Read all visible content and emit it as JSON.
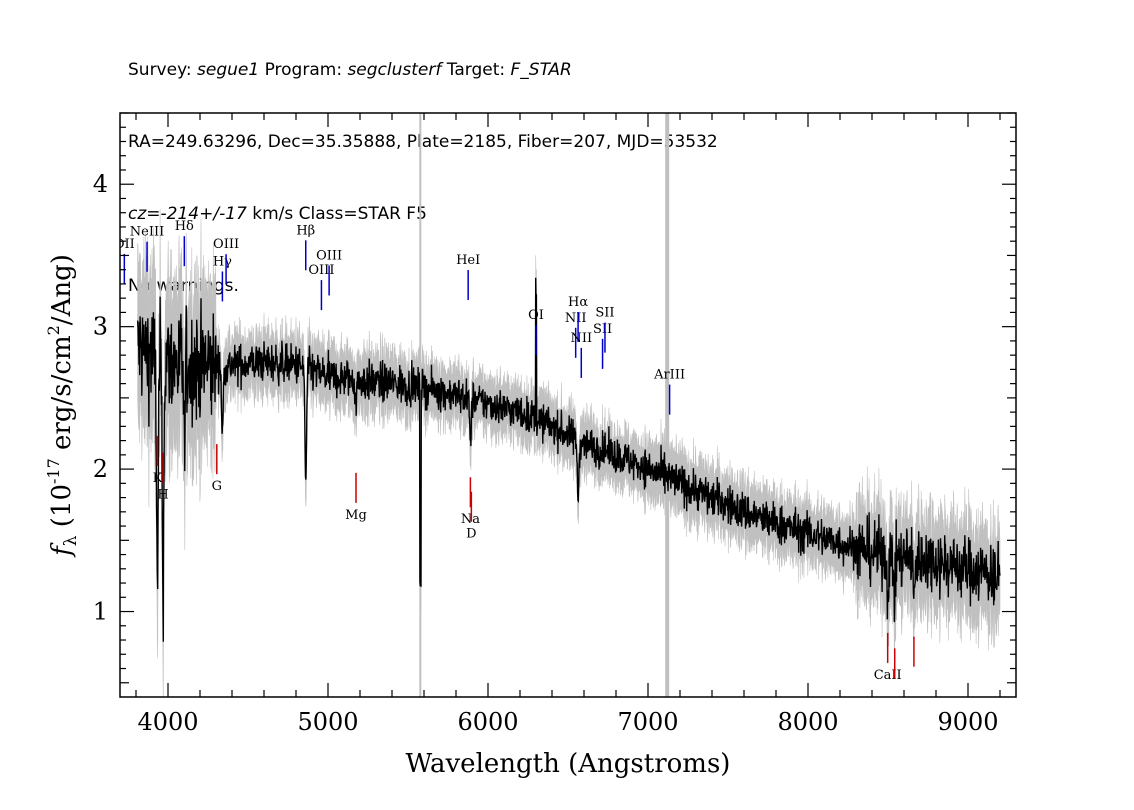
{
  "header": {
    "line1": {
      "a": "Survey: ",
      "survey": "segue1",
      "b": " Program: ",
      "program": "segclusterf",
      "c": " Target: ",
      "target": "F_STAR"
    },
    "line2": "RA=249.63296, Dec=35.35888, Plate=2185, Fiber=207, MJD=53532",
    "line3": {
      "cz": "cz=-214+/-17",
      "rest": " km/s Class=STAR F5"
    },
    "line4": "No warnings."
  },
  "chart_data": {
    "type": "line",
    "xlabel": "Wavelength (Angstroms)",
    "ylabel": {
      "f": "f",
      "sub": "λ",
      "pre": " (10",
      "exp": "-17",
      "mid": " erg/s/cm",
      "exp2": "2",
      "post": "/Ang)"
    },
    "xlim": [
      3700,
      9300
    ],
    "ylim": [
      0.4,
      4.5
    ],
    "x_ticks": [
      4000,
      5000,
      6000,
      7000,
      8000,
      9000
    ],
    "y_ticks": [
      1,
      2,
      3,
      4
    ],
    "sky_lines": [
      5577,
      7120
    ],
    "colors": {
      "spectrum": "#000000",
      "error": "#c0c0c0",
      "emission": "#0000cc",
      "absorption": "#cc0000",
      "sky": "#c0c0c0"
    },
    "continuum": [
      [
        3800,
        2.85
      ],
      [
        4000,
        2.75
      ],
      [
        4200,
        2.72
      ],
      [
        4400,
        2.73
      ],
      [
        4600,
        2.75
      ],
      [
        4800,
        2.73
      ],
      [
        5000,
        2.65
      ],
      [
        5200,
        2.62
      ],
      [
        5400,
        2.6
      ],
      [
        5600,
        2.57
      ],
      [
        5800,
        2.52
      ],
      [
        6000,
        2.46
      ],
      [
        6200,
        2.4
      ],
      [
        6400,
        2.3
      ],
      [
        6600,
        2.18
      ],
      [
        6800,
        2.1
      ],
      [
        7000,
        2.0
      ],
      [
        7200,
        1.9
      ],
      [
        7400,
        1.8
      ],
      [
        7600,
        1.7
      ],
      [
        7800,
        1.62
      ],
      [
        8000,
        1.55
      ],
      [
        8200,
        1.48
      ],
      [
        8400,
        1.42
      ],
      [
        8600,
        1.38
      ],
      [
        8800,
        1.36
      ],
      [
        9000,
        1.3
      ],
      [
        9200,
        1.25
      ]
    ],
    "absorption_features": [
      [
        3934,
        1.7
      ],
      [
        3969,
        1.6
      ],
      [
        4102,
        0.6
      ],
      [
        4340,
        0.5
      ],
      [
        4861,
        0.8
      ],
      [
        5175,
        0.15
      ],
      [
        5890,
        0.3
      ],
      [
        6563,
        0.4
      ],
      [
        8498,
        0.3
      ],
      [
        8542,
        0.3
      ],
      [
        8662,
        0.3
      ]
    ],
    "spike_features": [
      [
        5577,
        -1.3
      ],
      [
        6300,
        0.9
      ]
    ],
    "emission_lines": [
      {
        "label": "OII",
        "x": 3727
      },
      {
        "label": "NeIII",
        "x": 3869
      },
      {
        "label": "Hδ",
        "x": 4102
      },
      {
        "label": "Hγ",
        "x": 4340
      },
      {
        "label": "OIII",
        "x": 4363
      },
      {
        "label": "Hβ",
        "x": 4861
      },
      {
        "label": "OIII",
        "x": 4959
      },
      {
        "label": "OIII",
        "x": 5007
      },
      {
        "label": "HeI",
        "x": 5876
      },
      {
        "label": "OI",
        "x": 6300
      },
      {
        "label": "NII",
        "x": 6548
      },
      {
        "label": "Hα",
        "x": 6563
      },
      {
        "label": "NII",
        "x": 6583
      },
      {
        "label": "SII",
        "x": 6716
      },
      {
        "label": "SII",
        "x": 6731
      },
      {
        "label": "ArIII",
        "x": 7135
      }
    ],
    "absorption_lines": [
      {
        "label": "K",
        "x": 3934
      },
      {
        "label": "H",
        "x": 3969
      },
      {
        "label": "G",
        "x": 4305
      },
      {
        "label": "Mg",
        "x": 5175
      },
      {
        "label": "Na",
        "x": 5890
      },
      {
        "label": "D",
        "x": 5896
      },
      {
        "label": "CaII",
        "x": 8498
      },
      {
        "label": "",
        "x": 8542
      },
      {
        "label": "",
        "x": 8662
      }
    ]
  }
}
